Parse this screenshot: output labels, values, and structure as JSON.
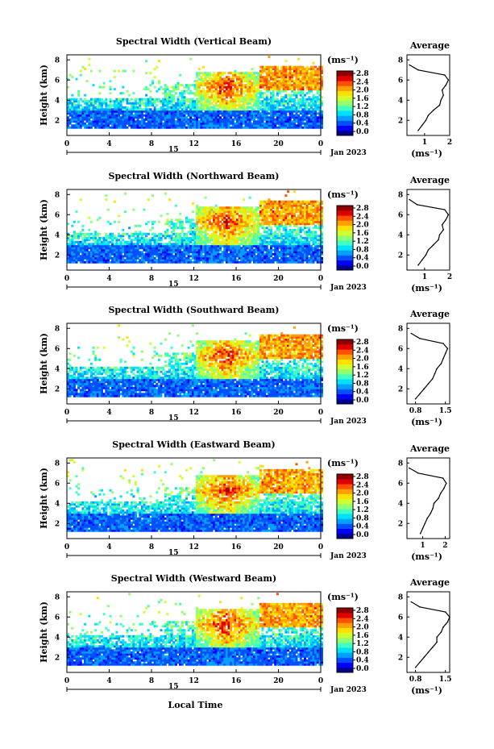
{
  "figure": {
    "x_label": "Local Time",
    "date_label": "Jan 2023",
    "x_ticks": [
      "0",
      "4",
      "8",
      "12",
      "16",
      "20",
      "0"
    ],
    "day_marker": "15"
  },
  "colorbar": {
    "unit": "(ms⁻¹)",
    "ticks": [
      "2.8",
      "2.4",
      "2.0",
      "1.6",
      "1.2",
      "0.8",
      "0.4",
      "0.0"
    ],
    "colors": [
      "#00008f",
      "#0000ff",
      "#0050ff",
      "#00a0ff",
      "#00e0ff",
      "#40ffc0",
      "#90ff70",
      "#d0ff30",
      "#ffe000",
      "#ffa000",
      "#ff5000",
      "#e00000",
      "#900000"
    ]
  },
  "chart_data": [
    {
      "type": "heatmap",
      "title": "Spectral Width (Vertical Beam)",
      "ylabel": "Height (km)",
      "y_ticks": [
        "2",
        "4",
        "6",
        "8"
      ],
      "ylim": [
        0.5,
        8.5
      ],
      "xlim": [
        0,
        24
      ],
      "avg_profile": {
        "title": "Average",
        "xlabel": "(ms⁻¹)",
        "x_ticks": [
          "1",
          "2"
        ],
        "xlim": [
          0.3,
          2.0
        ],
        "heights": [
          1.0,
          1.5,
          2.0,
          2.5,
          3.0,
          3.5,
          4.0,
          4.5,
          5.0,
          5.5,
          6.0,
          6.5,
          7.0,
          7.5
        ],
        "values": [
          0.75,
          0.9,
          1.05,
          1.15,
          1.35,
          1.6,
          1.65,
          1.75,
          1.7,
          1.85,
          1.95,
          1.8,
          0.75,
          0.4
        ]
      }
    },
    {
      "type": "heatmap",
      "title": "Spectral Width (Northward Beam)",
      "ylabel": "Height (km)",
      "y_ticks": [
        "2",
        "4",
        "6",
        "8"
      ],
      "ylim": [
        0.5,
        8.5
      ],
      "xlim": [
        0,
        24
      ],
      "avg_profile": {
        "title": "Average",
        "xlabel": "(ms⁻¹)",
        "x_ticks": [
          "1",
          "2"
        ],
        "xlim": [
          0.3,
          2.0
        ],
        "heights": [
          1.0,
          1.5,
          2.0,
          2.5,
          3.0,
          3.5,
          4.0,
          4.5,
          5.0,
          5.5,
          6.0,
          6.5,
          7.0,
          7.5
        ],
        "values": [
          0.75,
          0.9,
          1.05,
          1.15,
          1.35,
          1.55,
          1.6,
          1.75,
          1.7,
          1.85,
          1.95,
          1.8,
          0.7,
          0.4
        ]
      }
    },
    {
      "type": "heatmap",
      "title": "Spectral Width (Southward Beam)",
      "ylabel": "Height (km)",
      "y_ticks": [
        "2",
        "4",
        "6",
        "8"
      ],
      "ylim": [
        0.5,
        8.5
      ],
      "xlim": [
        0,
        24
      ],
      "avg_profile": {
        "title": "Average",
        "xlabel": "(ms⁻¹)",
        "x_ticks": [
          "0.8",
          "1.5"
        ],
        "xlim": [
          0.6,
          1.6
        ],
        "heights": [
          1.0,
          1.5,
          2.0,
          2.5,
          3.0,
          3.5,
          4.0,
          4.5,
          5.0,
          5.5,
          6.0,
          6.5,
          7.0,
          7.5
        ],
        "values": [
          0.8,
          0.9,
          1.0,
          1.1,
          1.2,
          1.25,
          1.3,
          1.4,
          1.45,
          1.5,
          1.55,
          1.45,
          0.9,
          0.7
        ]
      }
    },
    {
      "type": "heatmap",
      "title": "Spectral Width (Eastward Beam)",
      "ylabel": "Height (km)",
      "y_ticks": [
        "2",
        "4",
        "6",
        "8"
      ],
      "ylim": [
        0.5,
        8.5
      ],
      "xlim": [
        0,
        24
      ],
      "avg_profile": {
        "title": "Average",
        "xlabel": "(ms⁻¹)",
        "x_ticks": [
          "1",
          "2"
        ],
        "xlim": [
          0.3,
          2.2
        ],
        "heights": [
          1.0,
          1.5,
          2.0,
          2.5,
          3.0,
          3.5,
          4.0,
          4.5,
          5.0,
          5.5,
          6.0,
          6.5,
          7.0,
          7.5
        ],
        "values": [
          0.9,
          1.0,
          1.1,
          1.2,
          1.35,
          1.45,
          1.5,
          1.7,
          1.8,
          1.95,
          2.05,
          1.9,
          0.8,
          0.4
        ]
      }
    },
    {
      "type": "heatmap",
      "title": "Spectral Width (Westward Beam)",
      "ylabel": "Height (km)",
      "y_ticks": [
        "2",
        "4",
        "6",
        "8"
      ],
      "ylim": [
        0.5,
        8.5
      ],
      "xlim": [
        0,
        24
      ],
      "avg_profile": {
        "title": "Average",
        "xlabel": "(ms⁻¹)",
        "x_ticks": [
          "0.8",
          "1.5"
        ],
        "xlim": [
          0.6,
          1.6
        ],
        "heights": [
          1.0,
          1.5,
          2.0,
          2.5,
          3.0,
          3.5,
          4.0,
          4.5,
          5.0,
          5.5,
          6.0,
          6.5,
          7.0,
          7.5
        ],
        "values": [
          0.8,
          0.9,
          1.0,
          1.1,
          1.2,
          1.3,
          1.3,
          1.4,
          1.45,
          1.55,
          1.6,
          1.5,
          0.9,
          0.7
        ]
      }
    }
  ]
}
